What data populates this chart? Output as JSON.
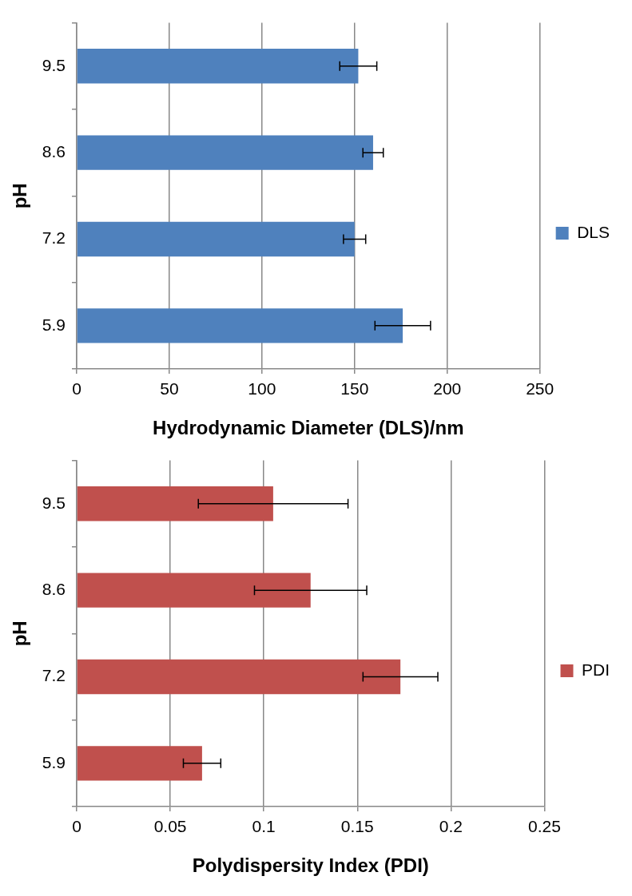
{
  "chart_data": [
    {
      "type": "bar",
      "orientation": "horizontal",
      "categories": [
        "9.5",
        "8.6",
        "7.2",
        "5.9"
      ],
      "xlabel": "Hydrodynamic Diameter (DLS)/nm",
      "ylabel": "pH",
      "xlim": [
        0,
        250
      ],
      "xticks": [
        0,
        50,
        100,
        150,
        200,
        250
      ],
      "grid": "x",
      "legend": "right",
      "series": [
        {
          "name": "DLS",
          "color": "#4f81bd",
          "values": [
            152,
            160,
            150,
            176
          ],
          "errors": [
            10,
            5.5,
            6,
            15
          ]
        }
      ]
    },
    {
      "type": "bar",
      "orientation": "horizontal",
      "categories": [
        "9.5",
        "8.6",
        "7.2",
        "5.9"
      ],
      "xlabel": "Polydispersity Index (PDI)",
      "ylabel": "pH",
      "xlim": [
        0,
        0.25
      ],
      "xticks": [
        0,
        0.05,
        0.1,
        0.15,
        0.2,
        0.25
      ],
      "grid": "x",
      "legend": "right",
      "series": [
        {
          "name": "PDI",
          "color": "#c0504d",
          "values": [
            0.105,
            0.125,
            0.173,
            0.067
          ],
          "errors": [
            0.04,
            0.03,
            0.02,
            0.01
          ]
        }
      ]
    }
  ]
}
